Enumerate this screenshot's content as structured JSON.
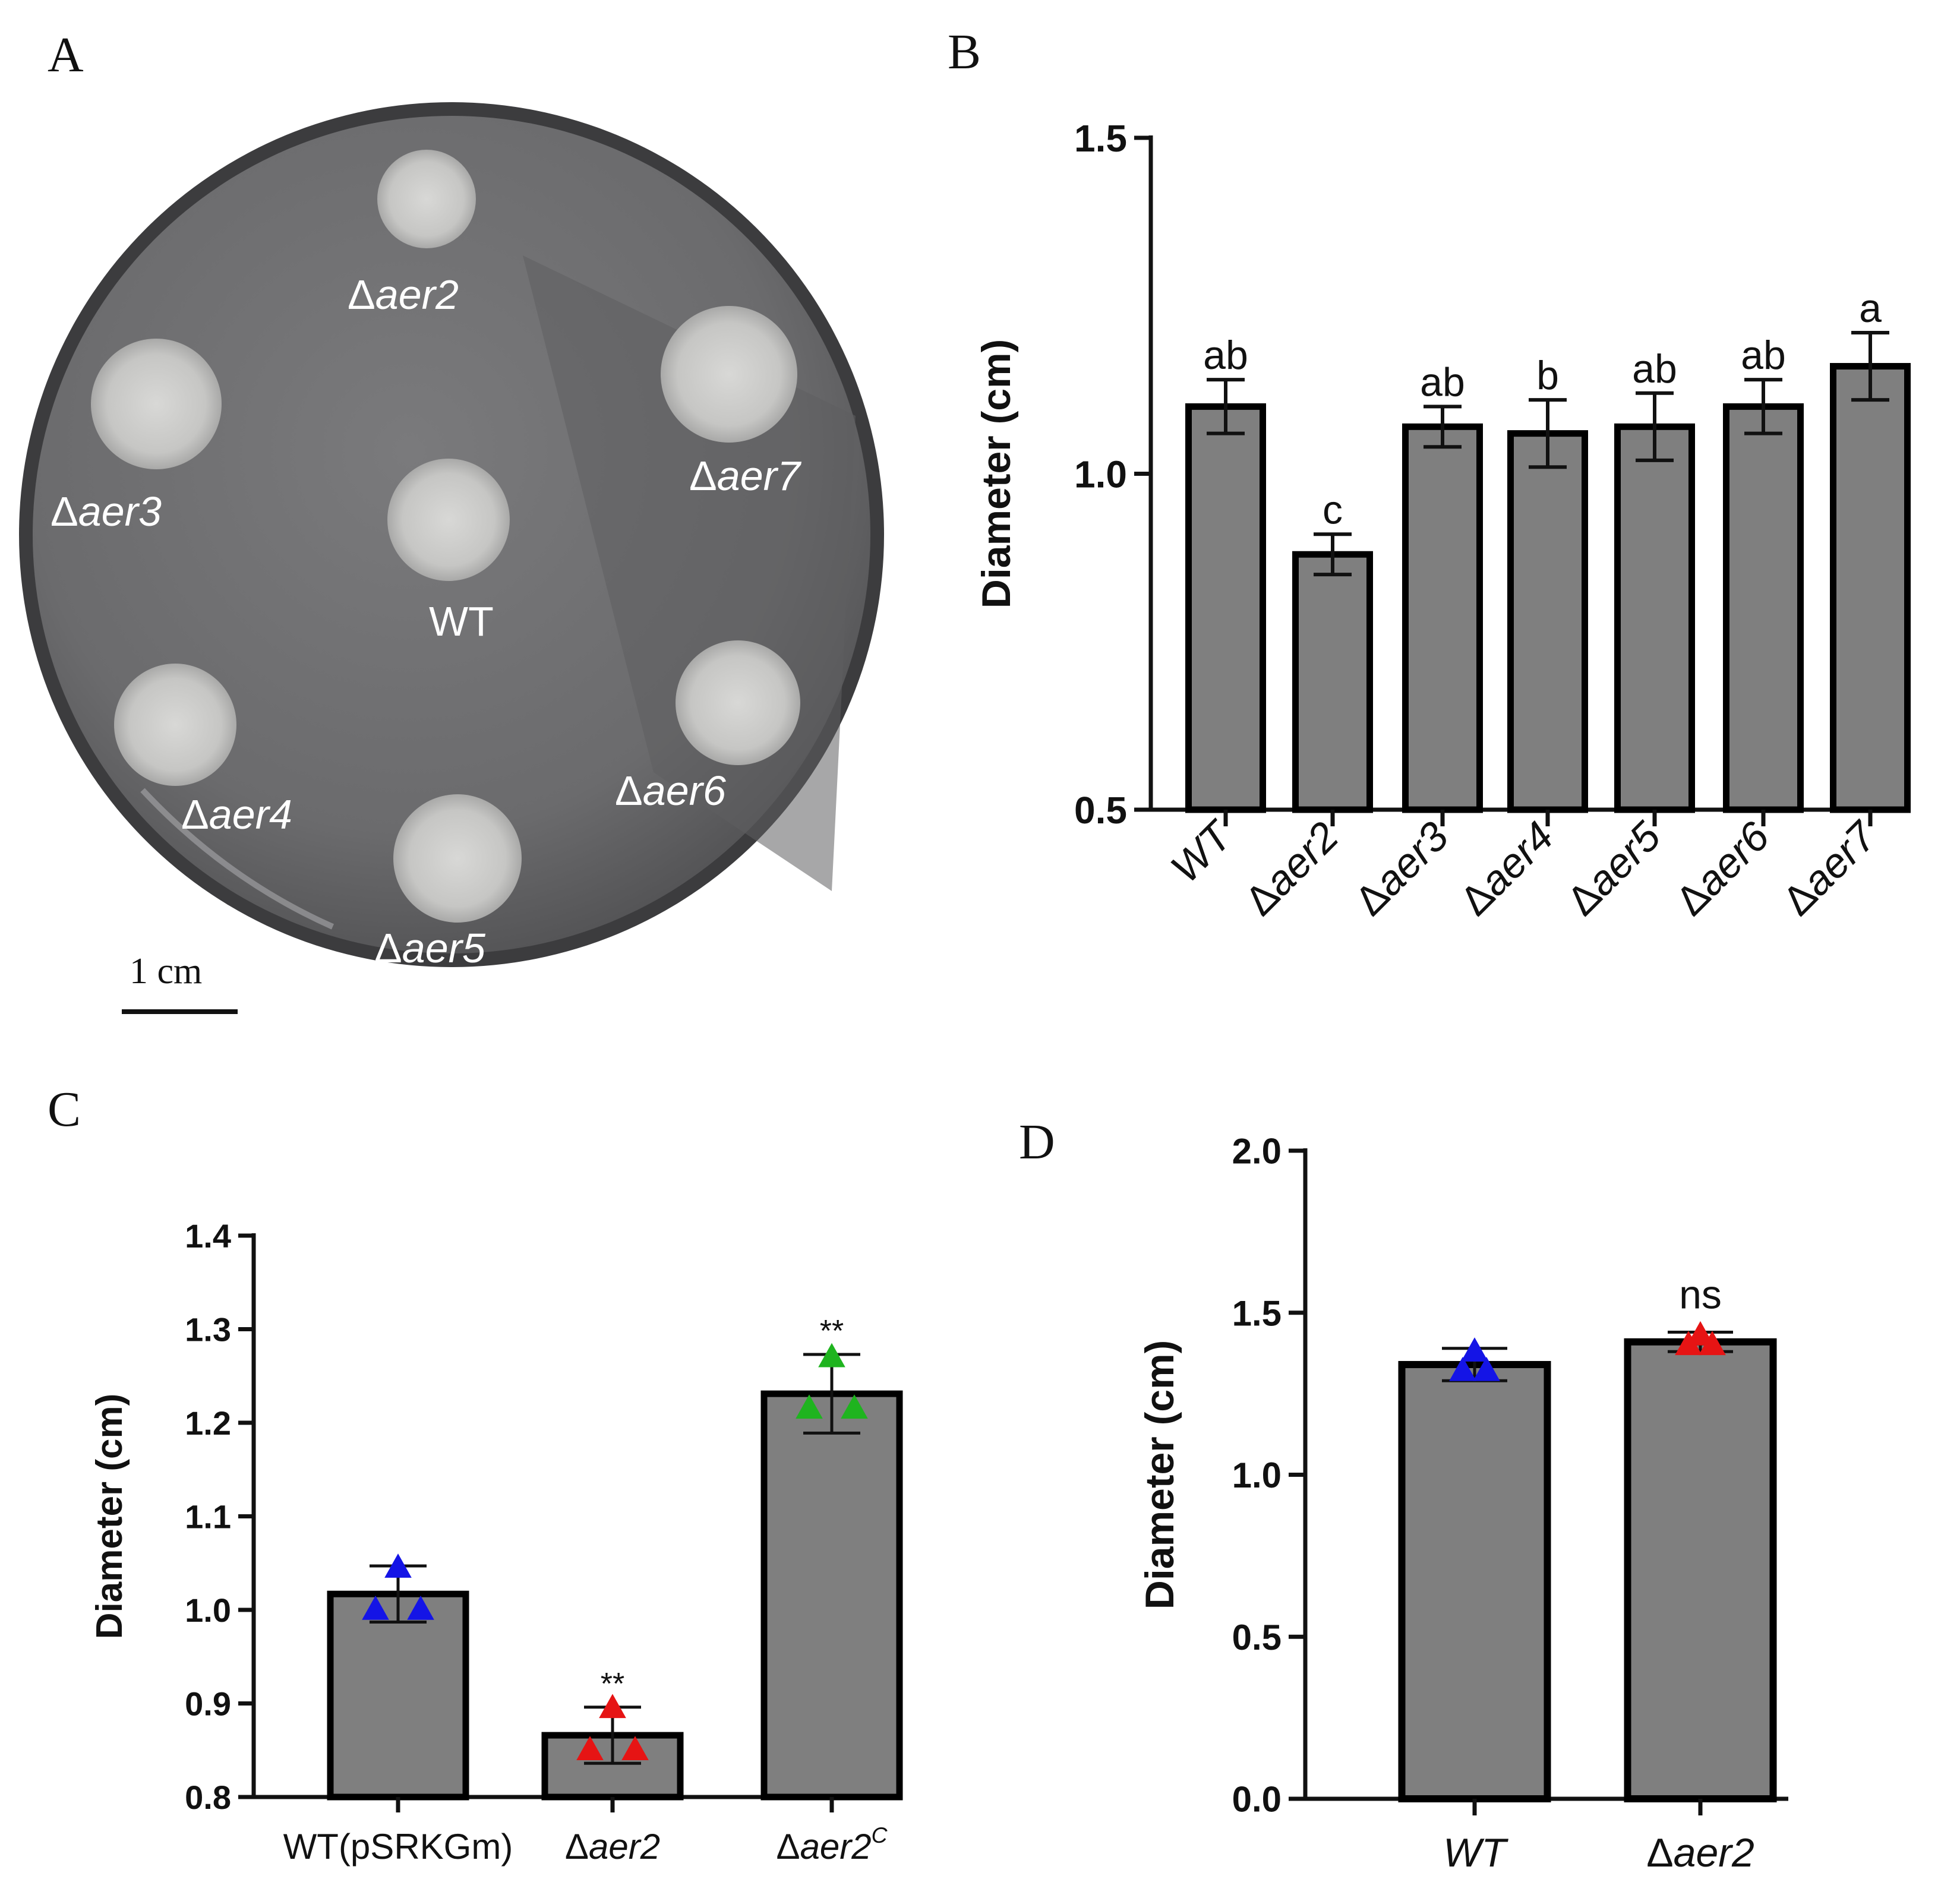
{
  "panels": {
    "a": {
      "letter": "A",
      "plate_labels": {
        "aer2": [
          "Δ",
          "aer2"
        ],
        "aer3": [
          "Δ",
          "aer3"
        ],
        "aer4": [
          "Δ",
          "aer4"
        ],
        "aer5": [
          "Δ",
          "aer5"
        ],
        "aer6": [
          "Δ",
          "aer6"
        ],
        "aer7": [
          "Δ",
          "aer7"
        ],
        "wt": "WT"
      },
      "scale_bar_label": "1 cm"
    },
    "b": {
      "letter": "B"
    },
    "c": {
      "letter": "C"
    },
    "d": {
      "letter": "D"
    }
  },
  "colors": {
    "bar_fill": "#7f7f7f",
    "bar_stroke": "#000000",
    "blue": "#1414e6",
    "red": "#e61414",
    "green": "#1fb41f",
    "plate": "#6e6e70",
    "plate_rim": "#3c3c3e",
    "colony": "#c9c9c7"
  },
  "chart_data": [
    {
      "id": "B",
      "type": "bar",
      "categories": [
        [
          "",
          "WT"
        ],
        [
          "Δ",
          "aer2"
        ],
        [
          "Δ",
          "aer3"
        ],
        [
          "Δ",
          "aer4"
        ],
        [
          "Δ",
          "aer5"
        ],
        [
          "Δ",
          "aer6"
        ],
        [
          "Δ",
          "aer7"
        ]
      ],
      "values": [
        1.1,
        0.88,
        1.07,
        1.06,
        1.07,
        1.1,
        1.16
      ],
      "errors": [
        0.04,
        0.03,
        0.03,
        0.05,
        0.05,
        0.04,
        0.05
      ],
      "significance": [
        "ab",
        "c",
        "ab",
        "b",
        "ab",
        "ab",
        "a"
      ],
      "ylabel": "Diameter (cm)",
      "ylim": [
        0.5,
        1.5
      ],
      "yticks": [
        "0.5",
        "1.0",
        "1.5"
      ]
    },
    {
      "id": "C",
      "type": "bar",
      "categories": [
        [
          "WT(pSRKGm)",
          "",
          ""
        ],
        [
          "Δ",
          "aer2",
          ""
        ],
        [
          "Δ",
          "aer2",
          "C"
        ]
      ],
      "values": [
        1.017,
        0.866,
        1.231
      ],
      "errors": [
        0.03,
        0.03,
        0.042
      ],
      "points": [
        [
          1.045,
          1.0,
          1.0
        ],
        [
          0.895,
          0.85,
          0.85
        ],
        [
          1.27,
          1.215,
          1.215
        ]
      ],
      "point_colors": [
        "blue",
        "red",
        "green"
      ],
      "significance": [
        "",
        "**",
        "**"
      ],
      "ylabel": "Diameter (cm)",
      "ylim": [
        0.8,
        1.4
      ],
      "yticks": [
        "0.8",
        "0.9",
        "1.0",
        "1.1",
        "1.2",
        "1.3",
        "1.4"
      ]
    },
    {
      "id": "D",
      "type": "bar",
      "categories": [
        [
          "",
          "WT",
          ""
        ],
        [
          "Δ",
          "aer2",
          ""
        ]
      ],
      "values": [
        1.34,
        1.41
      ],
      "errors": [
        0.05,
        0.03
      ],
      "points": [
        [
          1.38,
          1.32,
          1.32
        ],
        [
          1.43,
          1.4,
          1.4
        ]
      ],
      "point_colors": [
        "blue",
        "red"
      ],
      "significance": [
        "",
        "ns"
      ],
      "ylabel": "Diameter (cm)",
      "ylim": [
        0.0,
        2.0
      ],
      "yticks": [
        "0.0",
        "0.5",
        "1.0",
        "1.5",
        "2.0"
      ]
    }
  ]
}
